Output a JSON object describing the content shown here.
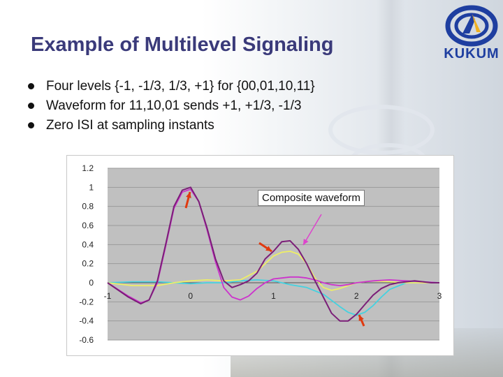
{
  "slide": {
    "title": "Example of Multilevel Signaling",
    "bullets": [
      "Four levels {-1, -1/3, 1/3, +1} for {00,01,10,11}",
      "Waveform for 11,10,01 sends +1, +1/3, -1/3",
      "Zero ISI at sampling instants"
    ]
  },
  "logo": {
    "text": "KUKUM",
    "icon": "kukum-emblem-icon"
  },
  "colors": {
    "title": "#3a3a7a",
    "plot_area": "#c0c0c0",
    "composite": "#7b1e78",
    "pulse_1": "#cc33cc",
    "pulse_2": "#eeee66",
    "pulse_3": "#44d2e0",
    "arrow_red": "#e03a10",
    "arrow_pointer": "#dd44cc"
  },
  "chart_data": {
    "type": "line",
    "title": "",
    "xlabel": "",
    "ylabel": "",
    "xlim": [
      -1,
      3
    ],
    "ylim": [
      -0.6,
      1.2
    ],
    "x_ticks": [
      "-1",
      "0",
      "1",
      "2",
      "3"
    ],
    "y_ticks": [
      "1.2",
      "1",
      "0.8",
      "0.6",
      "0.4",
      "0.2",
      "0",
      "-0.2",
      "-0.4",
      "-0.6"
    ],
    "grid": true,
    "legend": "none",
    "annotation": "Composite waveform",
    "series": [
      {
        "color": "#7b1e78",
        "x": [
          -1,
          -0.75,
          -0.6,
          -0.5,
          -0.4,
          -0.3,
          -0.2,
          -0.1,
          0,
          0.1,
          0.2,
          0.3,
          0.4,
          0.5,
          0.6,
          0.7,
          0.8,
          0.9,
          1.0,
          1.1,
          1.2,
          1.3,
          1.4,
          1.5,
          1.6,
          1.7,
          1.8,
          1.9,
          2.0,
          2.1,
          2.2,
          2.3,
          2.4,
          2.5,
          2.6,
          2.7,
          2.8,
          2.9,
          3.0
        ],
        "values": [
          0,
          -0.15,
          -0.22,
          -0.18,
          0.02,
          0.4,
          0.8,
          0.97,
          1.0,
          0.85,
          0.57,
          0.25,
          0.02,
          -0.05,
          -0.02,
          0.02,
          0.1,
          0.25,
          0.33,
          0.43,
          0.44,
          0.35,
          0.2,
          0.02,
          -0.15,
          -0.32,
          -0.4,
          -0.4,
          -0.33,
          -0.23,
          -0.13,
          -0.06,
          -0.02,
          0.0,
          0.01,
          0.02,
          0.01,
          0.0,
          0.0
        ]
      },
      {
        "color": "#cc33cc",
        "x": [
          -1,
          -0.75,
          -0.6,
          -0.5,
          -0.4,
          -0.3,
          -0.2,
          -0.1,
          0,
          0.1,
          0.2,
          0.3,
          0.4,
          0.5,
          0.6,
          0.7,
          0.8,
          0.9,
          1.0,
          1.1,
          1.2,
          1.3,
          1.4,
          1.5,
          1.6,
          1.7,
          1.8,
          1.9,
          2.0,
          2.2,
          2.4,
          2.6,
          2.8,
          3.0
        ],
        "values": [
          0,
          -0.14,
          -0.21,
          -0.18,
          0.0,
          0.38,
          0.78,
          0.95,
          0.98,
          0.85,
          0.55,
          0.22,
          -0.05,
          -0.15,
          -0.18,
          -0.14,
          -0.06,
          0.0,
          0.04,
          0.05,
          0.06,
          0.06,
          0.05,
          0.03,
          0.0,
          -0.02,
          -0.03,
          -0.02,
          0.0,
          0.02,
          0.03,
          0.02,
          0.01,
          0.0
        ]
      },
      {
        "color": "#eeee66",
        "x": [
          -1,
          -0.7,
          -0.4,
          -0.2,
          0,
          0.2,
          0.4,
          0.6,
          0.8,
          1.0,
          1.1,
          1.2,
          1.3,
          1.4,
          1.5,
          1.6,
          1.7,
          1.8,
          2.0,
          2.2,
          2.4,
          2.6,
          2.8,
          3.0
        ],
        "values": [
          0,
          -0.03,
          -0.03,
          0.0,
          0.02,
          0.03,
          0.02,
          0.03,
          0.12,
          0.28,
          0.32,
          0.33,
          0.3,
          0.2,
          0.05,
          -0.05,
          -0.08,
          -0.06,
          0.0,
          0.02,
          0.01,
          0.0,
          0.0,
          0.0
        ]
      },
      {
        "color": "#44d2e0",
        "x": [
          -1,
          -0.7,
          -0.4,
          -0.2,
          0,
          0.2,
          0.4,
          0.6,
          0.8,
          1.0,
          1.2,
          1.4,
          1.6,
          1.8,
          1.9,
          2.0,
          2.1,
          2.2,
          2.3,
          2.4,
          2.6,
          2.8,
          3.0
        ],
        "values": [
          0,
          0.01,
          0.01,
          0.0,
          -0.01,
          0.0,
          0.0,
          0.02,
          0.03,
          0.02,
          -0.02,
          -0.05,
          -0.12,
          -0.25,
          -0.31,
          -0.34,
          -0.31,
          -0.24,
          -0.15,
          -0.07,
          0.0,
          0.01,
          0.0
        ]
      }
    ]
  }
}
